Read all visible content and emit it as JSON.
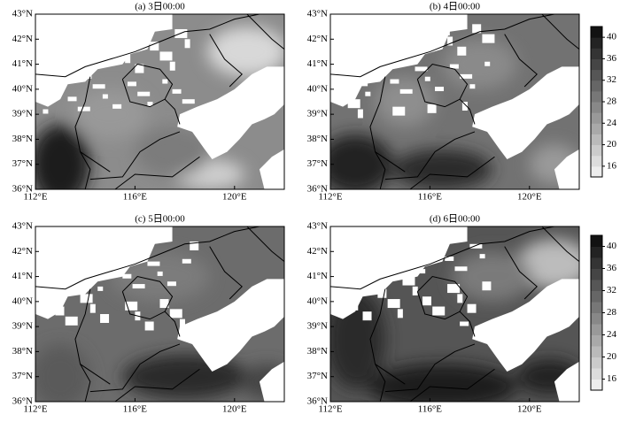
{
  "panels": [
    {
      "title": "(a) 3日00:00"
    },
    {
      "title": "(b) 4日00:00"
    },
    {
      "title": "(c) 5日00:00"
    },
    {
      "title": "(d) 6日00:00"
    }
  ],
  "map": {
    "xlim": [
      112,
      122
    ],
    "ylim": [
      36,
      43
    ],
    "xticks": [
      {
        "value": 112,
        "label": "112°E"
      },
      {
        "value": 116,
        "label": "116°E"
      },
      {
        "value": 120,
        "label": "120°E"
      }
    ],
    "yticks": [
      {
        "value": 36,
        "label": "36°N"
      },
      {
        "value": 37,
        "label": "37°N"
      },
      {
        "value": 38,
        "label": "38°N"
      },
      {
        "value": 39,
        "label": "39°N"
      },
      {
        "value": 40,
        "label": "40°N"
      },
      {
        "value": 41,
        "label": "41°N"
      },
      {
        "value": 42,
        "label": "42°N"
      },
      {
        "value": 43,
        "label": "43°N"
      }
    ]
  },
  "colorbar": {
    "clim": [
      14,
      42
    ],
    "ticks": [
      16,
      20,
      24,
      28,
      32,
      36,
      40
    ]
  }
}
